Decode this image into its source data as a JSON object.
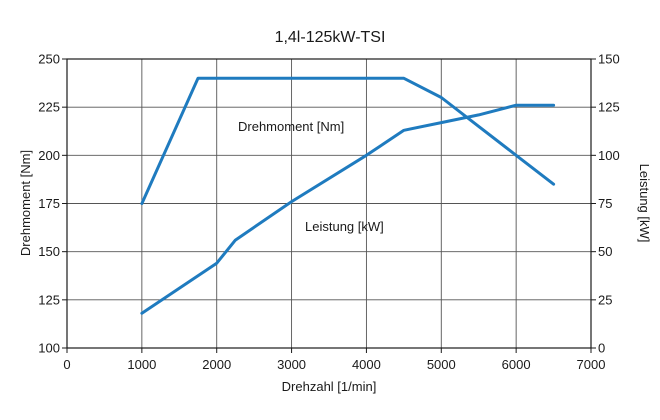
{
  "chart_data": {
    "type": "line",
    "title": "1,4l-125kW-TSI",
    "xlabel": "Drehzahl [1/min]",
    "ylabel_left": "Drehmoment [Nm]",
    "ylabel_right": "Leistung [kW]",
    "xlim": [
      0,
      7000
    ],
    "ylim_left": [
      100,
      250
    ],
    "ylim_right": [
      0,
      150
    ],
    "x_ticks": [
      "0",
      "1000",
      "2000",
      "3000",
      "4000",
      "5000",
      "6000",
      "7000"
    ],
    "y_left_ticks": [
      "100",
      "125",
      "150",
      "175",
      "200",
      "225",
      "250"
    ],
    "y_right_ticks": [
      "0",
      "25",
      "50",
      "75",
      "100",
      "125",
      "150"
    ],
    "grid": true,
    "line_color": "#1f7bbf",
    "series": [
      {
        "name": "Drehmoment [Nm]",
        "axis": "left",
        "x": [
          1000,
          1750,
          2000,
          3000,
          4000,
          4500,
          5000,
          5500,
          6000,
          6500
        ],
        "y": [
          175,
          240,
          240,
          240,
          240,
          240,
          230,
          215,
          200,
          185
        ]
      },
      {
        "name": "Leistung [kW]",
        "axis": "right",
        "x": [
          1000,
          1500,
          2000,
          2250,
          3000,
          4000,
          4500,
          5000,
          5500,
          6000,
          6500
        ],
        "y": [
          18,
          31,
          44,
          56,
          76,
          100,
          113,
          117,
          121,
          126,
          126
        ]
      }
    ]
  }
}
